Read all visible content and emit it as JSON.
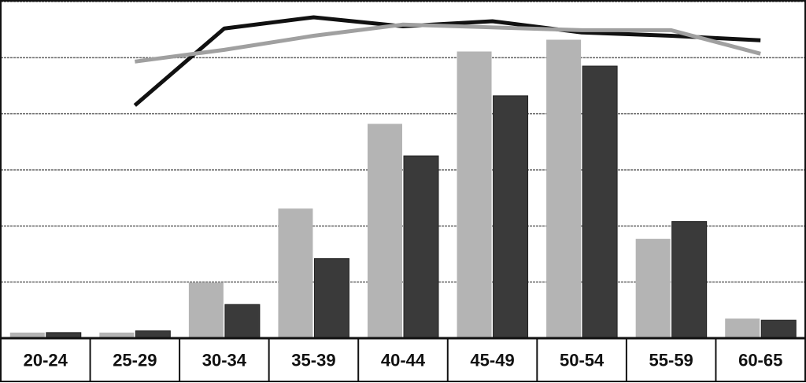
{
  "chart_data": {
    "type": "bar",
    "categories": [
      "20-24",
      "25-29",
      "30-34",
      "35-39",
      "40-44",
      "45-49",
      "50-54",
      "55-59",
      "60-65"
    ],
    "series": [
      {
        "type": "bar",
        "color": "#b4b4b4",
        "values": [
          0.1,
          0.1,
          0.99,
          2.31,
          3.82,
          5.11,
          5.32,
          1.77,
          0.35
        ]
      },
      {
        "type": "bar",
        "color": "#3a3a3a",
        "values": [
          0.1,
          0.13,
          0.6,
          1.42,
          3.25,
          4.32,
          4.85,
          2.08,
          0.32
        ]
      },
      {
        "type": "line",
        "color": "#111111",
        "values": [
          null,
          4.15,
          5.52,
          5.72,
          5.56,
          5.65,
          5.45,
          5.39,
          5.31
        ]
      },
      {
        "type": "line",
        "color": "#a0a0a0",
        "values": [
          null,
          4.93,
          5.14,
          5.39,
          5.59,
          5.54,
          5.49,
          5.49,
          5.07
        ]
      }
    ],
    "ylim": [
      0,
      6
    ],
    "yticks": [
      0,
      1,
      2,
      3,
      4,
      5,
      6
    ],
    "grid": true
  }
}
